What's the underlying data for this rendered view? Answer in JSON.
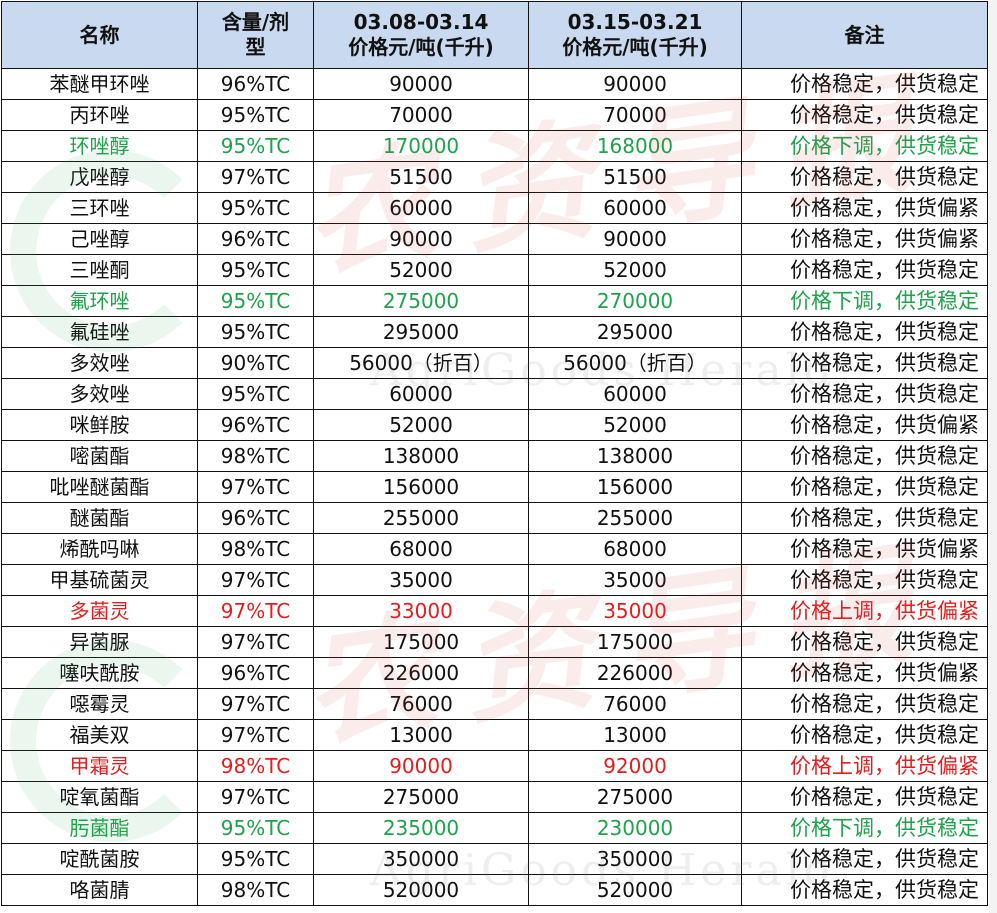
{
  "headers": {
    "name": "名称",
    "spec": "含量/剂型",
    "spec_l1": "含量/剂",
    "spec_l2": "型",
    "week1_dates": "03.08-03.14",
    "week1_unit": "价格元/吨(千升)",
    "week2_dates": "03.15-03.21",
    "week2_unit": "价格元/吨(千升)",
    "note": "备注"
  },
  "watermark": {
    "brand_cn": "农资导报",
    "brand_en": "AgriGoods Herald"
  },
  "colors": {
    "header_bg": "#c9d9ef",
    "price_down": "#1ea24a",
    "price_up": "#e31d1d",
    "stable": "#111111"
  },
  "rows": [
    {
      "name": "苯醚甲环唑",
      "spec": "96%TC",
      "p1": "90000",
      "p2": "90000",
      "note": "价格稳定，供货稳定",
      "trend": "stable"
    },
    {
      "name": "丙环唑",
      "spec": "95%TC",
      "p1": "70000",
      "p2": "70000",
      "note": "价格稳定，供货稳定",
      "trend": "stable"
    },
    {
      "name": "环唑醇",
      "spec": "95%TC",
      "p1": "170000",
      "p2": "168000",
      "note": "价格下调，供货稳定",
      "trend": "down"
    },
    {
      "name": "戊唑醇",
      "spec": "97%TC",
      "p1": "51500",
      "p2": "51500",
      "note": "价格稳定，供货稳定",
      "trend": "stable"
    },
    {
      "name": "三环唑",
      "spec": "95%TC",
      "p1": "60000",
      "p2": "60000",
      "note": "价格稳定，供货偏紧",
      "trend": "stable"
    },
    {
      "name": "己唑醇",
      "spec": "96%TC",
      "p1": "90000",
      "p2": "90000",
      "note": "价格稳定，供货偏紧",
      "trend": "stable"
    },
    {
      "name": "三唑酮",
      "spec": "95%TC",
      "p1": "52000",
      "p2": "52000",
      "note": "价格稳定，供货稳定",
      "trend": "stable"
    },
    {
      "name": "氟环唑",
      "spec": "95%TC",
      "p1": "275000",
      "p2": "270000",
      "note": "价格下调，供货稳定",
      "trend": "down"
    },
    {
      "name": "氟硅唑",
      "spec": "95%TC",
      "p1": "295000",
      "p2": "295000",
      "note": "价格稳定，供货稳定",
      "trend": "stable"
    },
    {
      "name": "多效唑",
      "spec": "90%TC",
      "p1": "56000（折百）",
      "p2": "56000（折百）",
      "note": "价格稳定，供货稳定",
      "trend": "stable"
    },
    {
      "name": "多效唑",
      "spec": "95%TC",
      "p1": "60000",
      "p2": "60000",
      "note": "价格稳定，供货稳定",
      "trend": "stable"
    },
    {
      "name": "咪鲜胺",
      "spec": "96%TC",
      "p1": "52000",
      "p2": "52000",
      "note": "价格稳定，供货偏紧",
      "trend": "stable"
    },
    {
      "name": "嘧菌酯",
      "spec": "98%TC",
      "p1": "138000",
      "p2": "138000",
      "note": "价格稳定，供货稳定",
      "trend": "stable"
    },
    {
      "name": "吡唑醚菌酯",
      "spec": "97%TC",
      "p1": "156000",
      "p2": "156000",
      "note": "价格稳定，供货稳定",
      "trend": "stable"
    },
    {
      "name": "醚菌酯",
      "spec": "96%TC",
      "p1": "255000",
      "p2": "255000",
      "note": "价格稳定，供货稳定",
      "trend": "stable"
    },
    {
      "name": "烯酰吗啉",
      "spec": "98%TC",
      "p1": "68000",
      "p2": "68000",
      "note": "价格稳定，供货偏紧",
      "trend": "stable"
    },
    {
      "name": "甲基硫菌灵",
      "spec": "97%TC",
      "p1": "35000",
      "p2": "35000",
      "note": "价格稳定，供货稳定",
      "trend": "stable"
    },
    {
      "name": "多菌灵",
      "spec": "97%TC",
      "p1": "33000",
      "p2": "35000",
      "note": "价格上调，供货偏紧",
      "trend": "up"
    },
    {
      "name": "异菌脲",
      "spec": "97%TC",
      "p1": "175000",
      "p2": "175000",
      "note": "价格稳定，供货稳定",
      "trend": "stable"
    },
    {
      "name": "噻呋酰胺",
      "spec": "96%TC",
      "p1": "226000",
      "p2": "226000",
      "note": "价格稳定，供货偏紧",
      "trend": "stable"
    },
    {
      "name": "噁霉灵",
      "spec": "97%TC",
      "p1": "76000",
      "p2": "76000",
      "note": "价格稳定，供货稳定",
      "trend": "stable"
    },
    {
      "name": "福美双",
      "spec": "97%TC",
      "p1": "13000",
      "p2": "13000",
      "note": "价格稳定，供货稳定",
      "trend": "stable"
    },
    {
      "name": "甲霜灵",
      "spec": "98%TC",
      "p1": "90000",
      "p2": "92000",
      "note": "价格上调，供货偏紧",
      "trend": "up"
    },
    {
      "name": "啶氧菌酯",
      "spec": "97%TC",
      "p1": "275000",
      "p2": "275000",
      "note": "价格稳定，供货稳定",
      "trend": "stable"
    },
    {
      "name": "肟菌酯",
      "spec": "95%TC",
      "p1": "235000",
      "p2": "230000",
      "note": "价格下调，供货稳定",
      "trend": "down"
    },
    {
      "name": "啶酰菌胺",
      "spec": "95%TC",
      "p1": "350000",
      "p2": "350000",
      "note": "价格稳定，供货稳定",
      "trend": "stable"
    },
    {
      "name": "咯菌腈",
      "spec": "98%TC",
      "p1": "520000",
      "p2": "520000",
      "note": "价格稳定，供货稳定",
      "trend": "stable"
    }
  ]
}
